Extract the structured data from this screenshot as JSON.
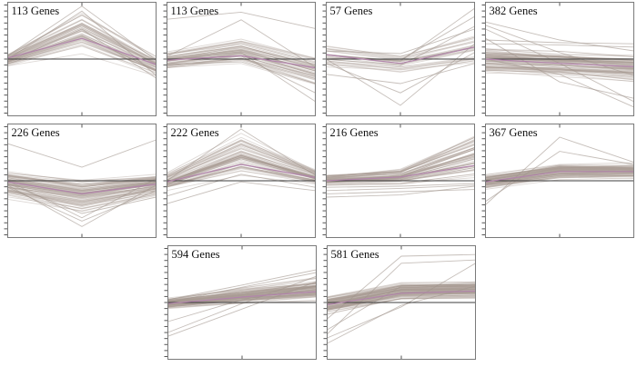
{
  "figure": {
    "background": "#ffffff",
    "bundle_line_color": "rgba(167,156,147,0.38)",
    "outlier_line_color": "rgba(160,149,140,0.60)",
    "mean_line_color": "#b184ab",
    "zero_line_color": "#3c3c3c",
    "border_color": "#7a7a7a",
    "tick_color": "#555555",
    "label_color": "#111111"
  },
  "chart_data": {
    "type": "line",
    "title": "",
    "xlabel": "",
    "ylabel": "",
    "description": "Grid of 10 gene-cluster expression profile panels. Each panel plots many individual gene profiles (thin gray lines) across 3 unlabeled x positions (left edge, center, right edge), a dark horizontal zero reference line at mid-height, and a magenta mean-profile line. Y axis has dense unlabeled minor ticks; x axis has a single center tick on top and bottom edges. Values are normalized expression, y range approximately -1 to +1 of half panel height.",
    "x_points": 3,
    "y_minor_ticks": 19,
    "ylim": [
      -1,
      1
    ],
    "grid": false,
    "legend": "none",
    "panels": [
      {
        "row": 1,
        "label": "113 Genes",
        "n": 48,
        "lo": [
          -0.14,
          0.1,
          -0.33
        ],
        "hi": [
          0.12,
          0.93,
          0.08
        ],
        "mean": [
          0.02,
          0.38,
          -0.1
        ],
        "outliers": [
          [
            0.06,
            0.97,
            -0.02
          ],
          [
            0.0,
            0.88,
            -0.3
          ],
          [
            -0.05,
            0.55,
            -0.35
          ]
        ]
      },
      {
        "row": 1,
        "label": "113 Genes",
        "n": 48,
        "lo": [
          -0.2,
          -0.1,
          -0.5
        ],
        "hi": [
          0.16,
          0.42,
          0.1
        ],
        "mean": [
          -0.02,
          0.06,
          -0.16
        ],
        "outliers": [
          [
            0.73,
            0.86,
            0.56
          ],
          [
            0.05,
            0.72,
            -0.15
          ],
          [
            -0.02,
            0.12,
            -0.78
          ],
          [
            0.0,
            0.05,
            -0.62
          ],
          [
            -0.1,
            -0.05,
            -0.45
          ]
        ]
      },
      {
        "row": 1,
        "label": "57 Genes",
        "n": 26,
        "lo": [
          -0.22,
          -0.32,
          -0.18
        ],
        "hi": [
          0.28,
          0.12,
          0.5
        ],
        "mean": [
          0.08,
          -0.08,
          0.22
        ],
        "outliers": [
          [
            0.0,
            -0.85,
            0.28
          ],
          [
            -0.08,
            -0.62,
            0.12
          ],
          [
            -0.28,
            -0.45,
            -0.08
          ],
          [
            0.08,
            -0.04,
            0.93
          ],
          [
            0.02,
            -0.02,
            0.78
          ],
          [
            0.0,
            -0.12,
            0.6
          ],
          [
            0.15,
            0.1,
            0.55
          ]
        ]
      },
      {
        "row": 1,
        "label": "382 Genes",
        "n": 75,
        "lo": [
          -0.28,
          -0.33,
          -0.42
        ],
        "hi": [
          0.26,
          0.18,
          0.12
        ],
        "mean": [
          0.0,
          -0.08,
          -0.14
        ],
        "outliers": [
          [
            0.62,
            0.12,
            -0.3
          ],
          [
            0.55,
            -0.08,
            -0.78
          ],
          [
            0.38,
            -0.42,
            -0.72
          ],
          [
            0.0,
            -0.28,
            -0.88
          ],
          [
            0.35,
            0.3,
            0.28
          ],
          [
            0.28,
            0.26,
            0.22
          ],
          [
            0.68,
            0.35,
            0.15
          ]
        ]
      },
      {
        "row": 2,
        "label": "226 Genes",
        "n": 75,
        "lo": [
          -0.32,
          -0.58,
          -0.28
        ],
        "hi": [
          0.18,
          0.02,
          0.12
        ],
        "mean": [
          -0.02,
          -0.24,
          -0.06
        ],
        "outliers": [
          [
            -0.08,
            -0.84,
            -0.08
          ],
          [
            -0.12,
            -0.74,
            -0.18
          ],
          [
            0.0,
            -0.68,
            0.04
          ],
          [
            -0.05,
            -0.6,
            -0.3
          ],
          [
            0.68,
            0.25,
            0.75
          ]
        ]
      },
      {
        "row": 2,
        "label": "222 Genes",
        "n": 60,
        "lo": [
          -0.18,
          0.06,
          -0.08
        ],
        "hi": [
          0.14,
          0.88,
          0.22
        ],
        "mean": [
          -0.02,
          0.3,
          0.06
        ],
        "outliers": [
          [
            -0.28,
            0.12,
            -0.12
          ],
          [
            -0.42,
            -0.02,
            -0.18
          ],
          [
            0.0,
            0.95,
            0.1
          ]
        ]
      },
      {
        "row": 2,
        "label": "216 Genes",
        "n": 60,
        "lo": [
          -0.08,
          -0.06,
          0.02
        ],
        "hi": [
          0.1,
          0.22,
          0.9
        ],
        "mean": [
          0.0,
          0.07,
          0.28
        ],
        "outliers": [
          [
            -0.18,
            -0.14,
            -0.08
          ],
          [
            -0.24,
            -0.2,
            -0.16
          ],
          [
            -0.3,
            -0.26,
            -0.1
          ],
          [
            -0.12,
            -0.1,
            -0.05
          ]
        ]
      },
      {
        "row": 2,
        "label": "367 Genes",
        "n": 75,
        "lo": [
          -0.18,
          0.02,
          0.02
        ],
        "hi": [
          0.14,
          0.34,
          0.34
        ],
        "mean": [
          -0.02,
          0.17,
          0.17
        ],
        "outliers": [
          [
            -0.44,
            0.8,
            0.34
          ],
          [
            -0.38,
            0.54,
            0.3
          ]
        ]
      },
      {
        "row": 3,
        "label": "594 Genes",
        "n": 85,
        "lo": [
          -0.13,
          -0.04,
          0.0
        ],
        "hi": [
          0.1,
          0.28,
          0.48
        ],
        "mean": [
          -0.02,
          0.1,
          0.2
        ],
        "outliers": [
          [
            -0.55,
            -0.02,
            0.48
          ],
          [
            -0.62,
            -0.12,
            0.38
          ],
          [
            0.05,
            0.32,
            0.6
          ],
          [
            0.0,
            0.28,
            0.55
          ],
          [
            -0.35,
            0.05,
            0.3
          ]
        ]
      },
      {
        "row": 3,
        "label": "581 Genes",
        "n": 85,
        "lo": [
          -0.22,
          0.04,
          0.06
        ],
        "hi": [
          0.14,
          0.38,
          0.4
        ],
        "mean": [
          -0.04,
          0.17,
          0.21
        ],
        "outliers": [
          [
            -0.58,
            0.72,
            0.78
          ],
          [
            -0.65,
            -0.08,
            0.72
          ],
          [
            -0.3,
            0.85,
            0.88
          ],
          [
            -0.5,
            0.3,
            0.34
          ],
          [
            -0.75,
            -0.05,
            0.3
          ]
        ]
      }
    ]
  }
}
